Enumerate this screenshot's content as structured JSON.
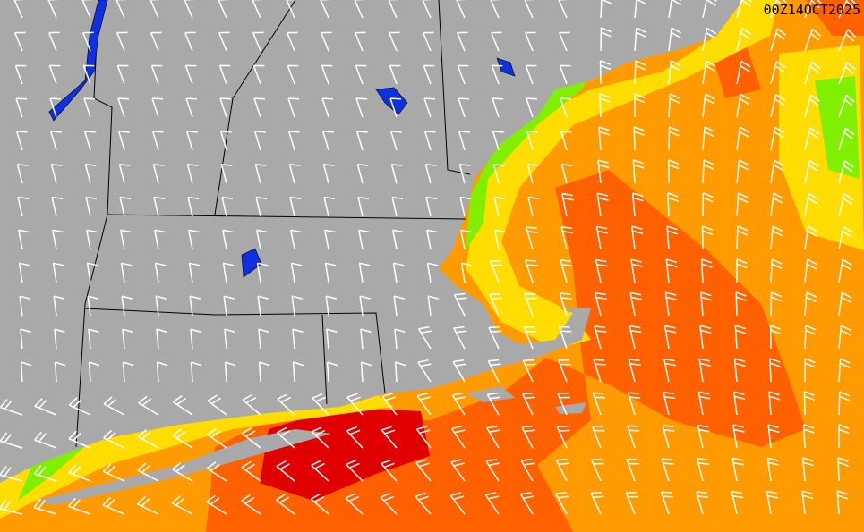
{
  "map": {
    "timestamp": "00Z14OCT2025",
    "colors": {
      "land": "#a9a9a9",
      "water_body": "#1030e0",
      "borders": "#000000",
      "barbs": "#ffffff",
      "wind_green": "#80f000",
      "wind_yellow": "#ffdd00",
      "wind_orange": "#ff9a00",
      "wind_darkorange": "#ff6000",
      "wind_red": "#e00000"
    }
  }
}
